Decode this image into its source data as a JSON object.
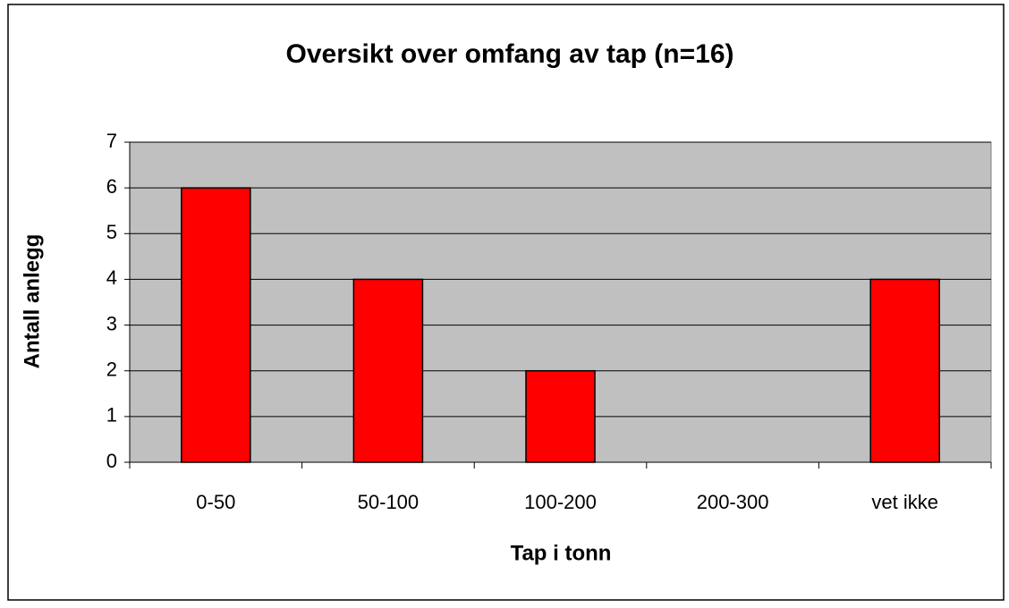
{
  "chart_data": {
    "type": "bar",
    "title": "Oversikt over omfang av tap (n=16)",
    "x_label": "Tap i tonn",
    "y_label": "Antall anlegg",
    "categories": [
      "0-50",
      "50-100",
      "100-200",
      "200-300",
      "vet ikke"
    ],
    "values": [
      6,
      4,
      2,
      0,
      4
    ],
    "color": "#ff0000",
    "ylim": [
      0,
      7
    ],
    "yticks": [
      0,
      1,
      2,
      3,
      4,
      5,
      6,
      7
    ],
    "grid": true
  }
}
